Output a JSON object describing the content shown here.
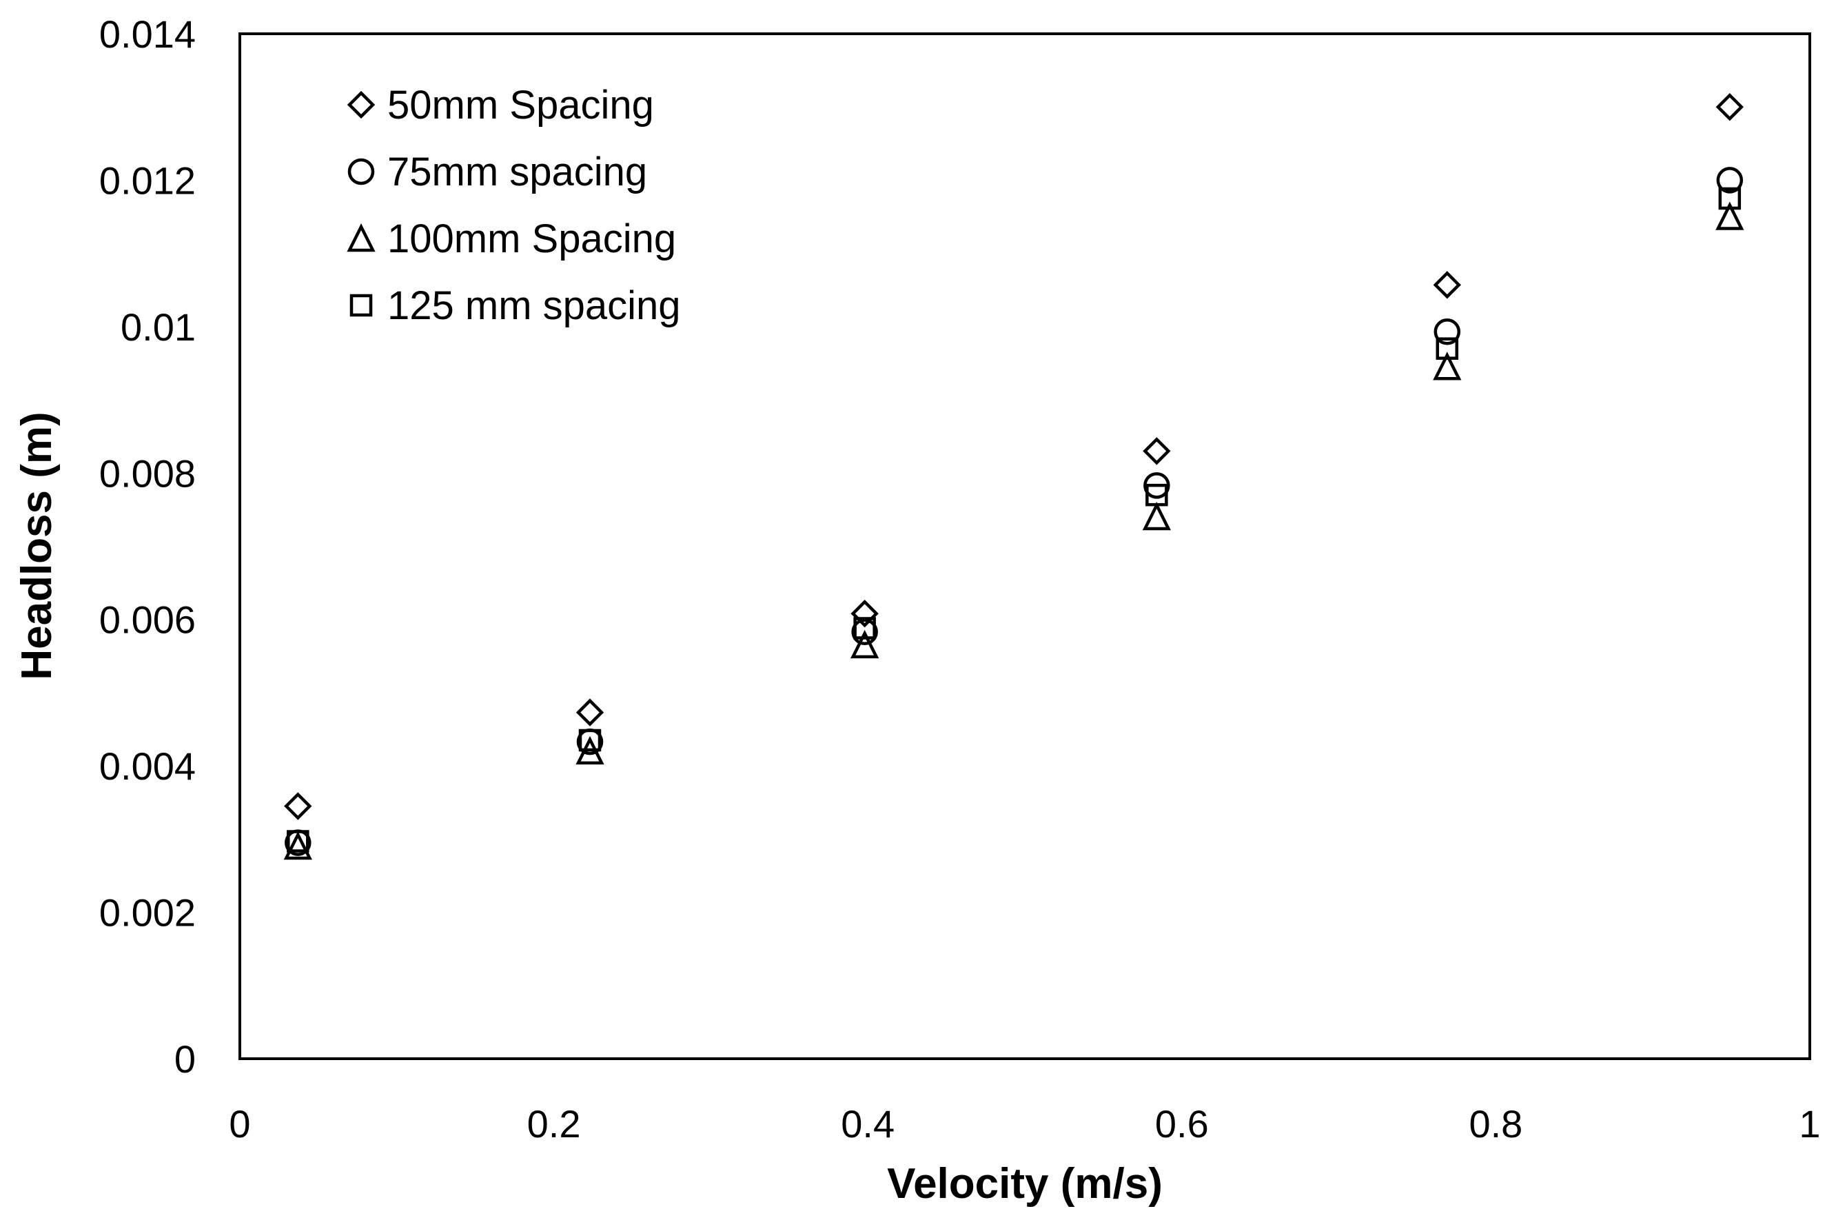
{
  "chart_data": {
    "type": "scatter",
    "title": "",
    "xlabel": "Velocity (m/s)",
    "ylabel": "Headloss (m)",
    "xlim": [
      0,
      1
    ],
    "ylim": [
      0,
      0.014
    ],
    "x_ticks": [
      0,
      0.2,
      0.4,
      0.6,
      0.8,
      1
    ],
    "x_tick_labels": [
      "0",
      "0.2",
      "0.4",
      "0.6",
      "0.8",
      "1"
    ],
    "y_ticks": [
      0,
      0.002,
      0.004,
      0.006,
      0.008,
      0.01,
      0.012,
      0.014
    ],
    "y_tick_labels": [
      "0",
      "0.002",
      "0.004",
      "0.006",
      "0.008",
      "0.01",
      "0.012",
      "0.014"
    ],
    "grid": false,
    "legend_position": "top-left",
    "x": [
      0.037,
      0.223,
      0.398,
      0.584,
      0.769,
      0.949
    ],
    "series": [
      {
        "name": "50mm Spacing",
        "marker": "diamond",
        "values": [
          0.00345,
          0.00473,
          0.00608,
          0.0083,
          0.01057,
          0.013
        ]
      },
      {
        "name": "75mm spacing",
        "marker": "circle",
        "values": [
          0.00295,
          0.00433,
          0.00583,
          0.00783,
          0.00993,
          0.012
        ]
      },
      {
        "name": "100mm Spacing",
        "marker": "triangle",
        "values": [
          0.0029,
          0.0042,
          0.00565,
          0.0074,
          0.00945,
          0.0115
        ]
      },
      {
        "name": "125 mm spacing",
        "marker": "square",
        "values": [
          0.00297,
          0.00435,
          0.00588,
          0.0077,
          0.0097,
          0.01175
        ]
      }
    ]
  }
}
